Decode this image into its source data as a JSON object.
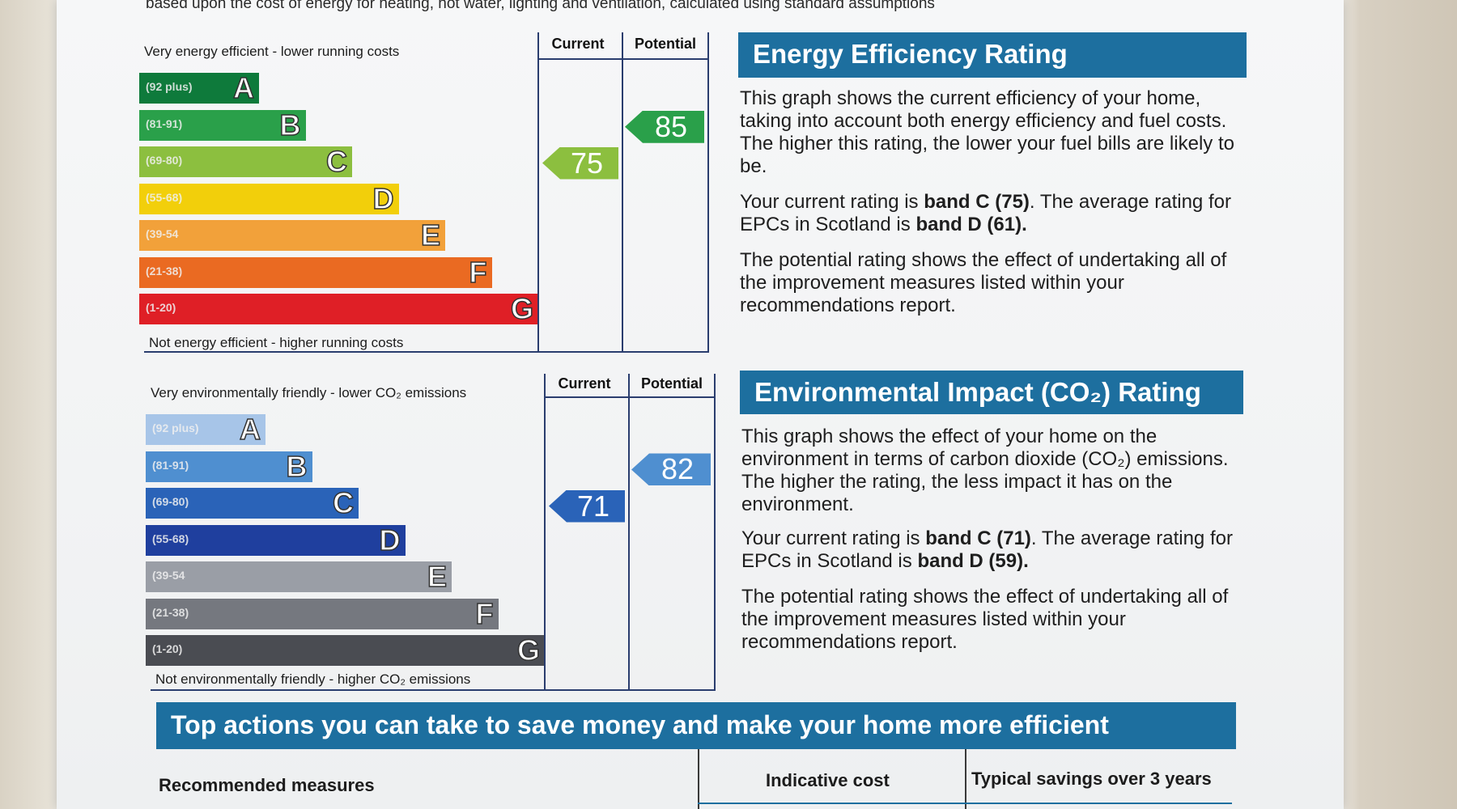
{
  "intro": "based upon the cost of energy for heating, hot water, lighting and ventilation, calculated using standard assumptions",
  "energy_chart": {
    "top_caption": "Very energy efficient - lower running costs",
    "bottom_caption": "Not energy efficient - higher running costs",
    "current_header": "Current",
    "potential_header": "Potential",
    "bands": [
      {
        "range": "(92 plus)",
        "letter": "A",
        "color": "#0e7a3b"
      },
      {
        "range": "(81-91)",
        "letter": "B",
        "color": "#2aa04a"
      },
      {
        "range": "(69-80)",
        "letter": "C",
        "color": "#8cbf3f"
      },
      {
        "range": "(55-68)",
        "letter": "D",
        "color": "#f2cf0b"
      },
      {
        "range": "(39-54",
        "letter": "E",
        "color": "#f2a13a"
      },
      {
        "range": "(21-38)",
        "letter": "F",
        "color": "#ea6a22"
      },
      {
        "range": "(1-20)",
        "letter": "G",
        "color": "#df1f26"
      }
    ],
    "current": 75,
    "current_color": "#8cbf3f",
    "potential": 85,
    "potential_color": "#2aa04a"
  },
  "co2_chart": {
    "top_caption": "Very environmentally friendly - lower CO₂ emissions",
    "bottom_caption": "Not environmentally friendly - higher CO₂ emissions",
    "current_header": "Current",
    "potential_header": "Potential",
    "bands": [
      {
        "range": "(92 plus)",
        "letter": "A",
        "color": "#a7c5e8"
      },
      {
        "range": "(81-91)",
        "letter": "B",
        "color": "#4f8fd0"
      },
      {
        "range": "(69-80)",
        "letter": "C",
        "color": "#2a63b8"
      },
      {
        "range": "(55-68)",
        "letter": "D",
        "color": "#1f3f9e"
      },
      {
        "range": "(39-54",
        "letter": "E",
        "color": "#9a9ea6"
      },
      {
        "range": "(21-38)",
        "letter": "F",
        "color": "#75787f"
      },
      {
        "range": "(1-20)",
        "letter": "G",
        "color": "#4a4c52"
      }
    ],
    "current": 71,
    "current_color": "#2a63b8",
    "potential": 82,
    "potential_color": "#4f8fd0"
  },
  "energy_panel": {
    "title": "Energy Efficiency Rating",
    "p1": "This graph shows the current efficiency of your home, taking into account both energy efficiency and fuel costs. The higher this rating, the lower your fuel bills are likely to be.",
    "p2_prefix": "Your current rating is ",
    "p2_current": "band C (75)",
    "p2_mid": ". The average rating for EPCs in Scotland is ",
    "p2_avg": "band D (61).",
    "p3": "The potential rating shows the effect of undertaking all of the improvement measures listed within your recommendations report."
  },
  "co2_panel": {
    "title": "Environmental Impact (CO₂) Rating",
    "p1": "This graph shows the effect of your home on the environment in terms of carbon dioxide (CO₂) emissions. The higher the rating, the less impact it has on the environment.",
    "p2_prefix": "Your current rating is ",
    "p2_current": "band C (71)",
    "p2_mid": ". The average rating for EPCs in Scotland is ",
    "p2_avg": "band D (59).",
    "p3": "The potential rating shows the effect of undertaking all of the improvement measures listed within your recommendations report."
  },
  "actions": {
    "title": "Top actions you can take to save money and make your home more efficient",
    "col_measures": "Recommended measures",
    "col_cost": "Indicative cost",
    "col_savings": "Typical savings over 3 years"
  }
}
